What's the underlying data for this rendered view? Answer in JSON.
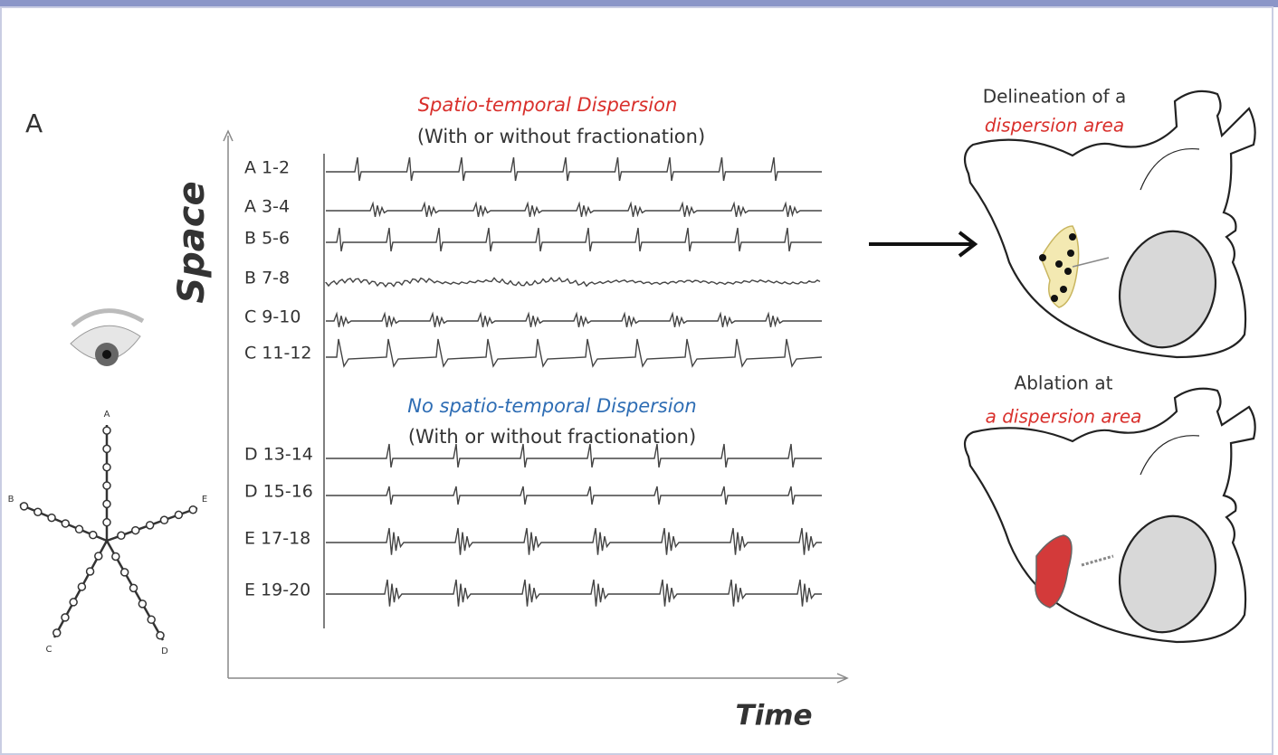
{
  "panel_label": "A",
  "axes": {
    "y_label": "Space",
    "x_label": "Time"
  },
  "top_group": {
    "title": "Spatio-temporal Dispersion",
    "subtitle": "(With or without fractionation)"
  },
  "bottom_group": {
    "title": "No spatio-temporal Dispersion",
    "subtitle": "(With or without fractionation)"
  },
  "channels": [
    "A 1-2",
    "A 3-4",
    "B 5-6",
    "B 7-8",
    "C 9-10",
    "C 11-12",
    "D 13-14",
    "D 15-16",
    "E 17-18",
    "E 19-20"
  ],
  "catheter": {
    "labels": [
      "A",
      "B",
      "C",
      "D",
      "E"
    ]
  },
  "right_top": {
    "line1": "Delineation of a",
    "line2": "dispersion area"
  },
  "right_bottom": {
    "line1": "Ablation at",
    "line2": "a dispersion area"
  }
}
